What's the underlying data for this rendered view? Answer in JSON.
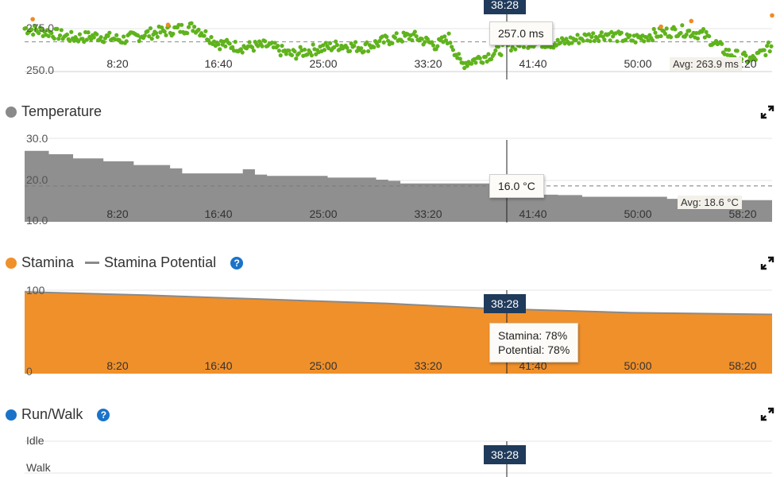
{
  "cursor_time": "38:28",
  "panels": {
    "gct": {
      "tooltip": "257.0 ms",
      "avg_label": "Avg: 263.9 ms",
      "title": "",
      "ylim": [
        248,
        282
      ],
      "avg": 263.9,
      "y_ticks": [
        "275.0",
        "250.0"
      ],
      "x_ticks": [
        "8:20",
        "16:40",
        "25:00",
        "33:20",
        "41:40",
        "50:00",
        "58:20"
      ],
      "colors": {
        "main": "#5fb31c",
        "outlier": "#f08a24"
      }
    },
    "temperature": {
      "title": "Temperature",
      "legend_color": "#8a8a8a",
      "tooltip": "16.0 °C",
      "avg_label": "Avg: 18.6 °C",
      "ylim": [
        10,
        30
      ],
      "avg": 18.6,
      "y_ticks": [
        "30.0",
        "20.0",
        "10.0"
      ],
      "x_ticks": [
        "8:20",
        "16:40",
        "25:00",
        "33:20",
        "41:40",
        "50:00",
        "58:20"
      ],
      "colors": {
        "fill": "#8f8f8f"
      }
    },
    "stamina": {
      "title": "Stamina",
      "legend_color": "#f0902a",
      "potential_title": "Stamina Potential",
      "potential_color": "#8a8a8a",
      "help": "?",
      "tooltip_line1": "Stamina: 78%",
      "tooltip_line2": "Potential: 78%",
      "ylim": [
        0,
        100
      ],
      "y_ticks": [
        "100",
        "0"
      ],
      "x_ticks": [
        "8:20",
        "16:40",
        "25:00",
        "33:20",
        "41:40",
        "50:00",
        "58:20"
      ],
      "colors": {
        "fill": "#f0902a",
        "line": "#8a8a8a"
      }
    },
    "runwalk": {
      "title": "Run/Walk",
      "legend_color": "#1a73c9",
      "help": "?",
      "y_ticks": [
        "Idle",
        "Walk"
      ]
    }
  },
  "chart_data": [
    {
      "type": "scatter",
      "title": "",
      "xlabel": "",
      "ylabel": "",
      "x_unit": "min:sec",
      "ylim": [
        248,
        282
      ],
      "x_tick_labels": [
        "8:20",
        "16:40",
        "25:00",
        "33:20",
        "41:40",
        "50:00",
        "58:20"
      ],
      "avg": 263.9,
      "series": [
        {
          "x": [
            "0:00",
            "2:00",
            "4:00",
            "6:00",
            "8:00",
            "10:00",
            "12:00",
            "14:00",
            "16:00",
            "18:00",
            "20:00",
            "22:00",
            "24:00",
            "26:00",
            "28:00",
            "30:00",
            "32:00",
            "34:00",
            "35:00",
            "36:00",
            "37:00",
            "38:28",
            "40:00",
            "42:00",
            "44:00",
            "46:00",
            "48:00",
            "50:00",
            "52:00",
            "54:00",
            "56:00",
            "58:00",
            "60:00",
            "61:40"
          ],
          "values": [
            271,
            269,
            266,
            267,
            265,
            268,
            270,
            272,
            263,
            261,
            262,
            257,
            260,
            262,
            261,
            265,
            267,
            262,
            266,
            252,
            254,
            257,
            262,
            264,
            263,
            266,
            268,
            265,
            268,
            270,
            268,
            258,
            254,
            262
          ]
        }
      ],
      "outliers": {
        "x": [
          "0:40",
          "11:50",
          "52:30",
          "55:00",
          "61:40"
        ],
        "values": [
          276,
          273,
          272,
          275,
          278
        ]
      }
    },
    {
      "type": "area",
      "title": "Temperature",
      "ylabel": "°C",
      "ylim": [
        10,
        30
      ],
      "x_tick_labels": [
        "8:20",
        "16:40",
        "25:00",
        "33:20",
        "41:40",
        "50:00",
        "58:20"
      ],
      "avg": 18.6,
      "series": [
        {
          "name": "Temperature",
          "x": [
            "0:00",
            "2:00",
            "4:00",
            "6:30",
            "9:00",
            "12:00",
            "13:00",
            "18:00",
            "19:00",
            "20:00",
            "25:00",
            "29:00",
            "30:00",
            "31:00",
            "38:28",
            "39:00",
            "44:00",
            "46:00",
            "53:00",
            "59:00",
            "61:40"
          ],
          "values": [
            27,
            26.2,
            25.2,
            24.5,
            23.6,
            22.8,
            21.6,
            22.6,
            21.3,
            21.0,
            20.6,
            20.1,
            19.8,
            19.2,
            16.0,
            16.5,
            16.4,
            16.0,
            15.5,
            15.2,
            15.2
          ]
        }
      ]
    },
    {
      "type": "area",
      "title": "Stamina",
      "ylabel": "%",
      "ylim": [
        0,
        100
      ],
      "x_tick_labels": [
        "8:20",
        "16:40",
        "25:00",
        "33:20",
        "41:40",
        "50:00",
        "58:20"
      ],
      "series": [
        {
          "name": "Stamina",
          "x": [
            "0:00",
            "10:00",
            "20:00",
            "30:00",
            "38:28",
            "50:00",
            "61:40"
          ],
          "values": [
            98,
            94,
            89,
            84,
            78,
            73,
            71
          ]
        },
        {
          "name": "Stamina Potential",
          "x": [
            "0:00",
            "10:00",
            "20:00",
            "30:00",
            "38:28",
            "50:00",
            "61:40"
          ],
          "values": [
            98,
            94,
            89,
            84,
            78,
            73,
            71
          ]
        }
      ]
    }
  ]
}
